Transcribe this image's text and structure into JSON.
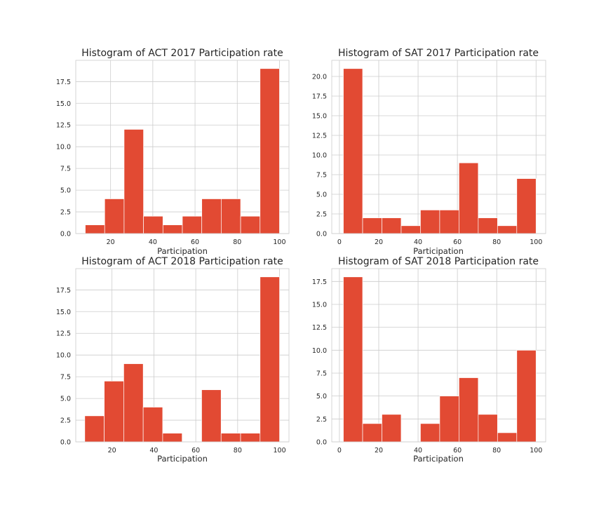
{
  "colors": {
    "bar": "#e24a33",
    "grid": "#cccccc",
    "text": "#262626"
  },
  "chart_data": [
    {
      "type": "bar",
      "title": "Histogram of ACT 2017 Participation rate",
      "xlabel": "Participation",
      "ylabel": "",
      "xlim": [
        3.5,
        104.5
      ],
      "ylim": [
        0,
        19.95
      ],
      "xticks": [
        20,
        40,
        60,
        80,
        100
      ],
      "xtick_labels": [
        "20",
        "40",
        "60",
        "80",
        "100"
      ],
      "yticks": [
        0,
        2.5,
        5,
        7.5,
        10,
        12.5,
        15,
        17.5
      ],
      "ytick_labels": [
        "0.0",
        "2.5",
        "5.0",
        "7.5",
        "10.0",
        "12.5",
        "15.0",
        "17.5"
      ],
      "bin_edges": [
        8,
        17.2,
        26.4,
        35.6,
        44.8,
        54,
        63.2,
        72.4,
        81.6,
        90.8,
        100
      ],
      "values": [
        1,
        4,
        12,
        2,
        1,
        2,
        4,
        4,
        2,
        19
      ],
      "grid": true
    },
    {
      "type": "bar",
      "title": "Histogram of SAT 2017 Participation rate",
      "xlabel": "Participation",
      "ylabel": "",
      "xlim": [
        -3.9,
        104.9
      ],
      "ylim": [
        0,
        22.05
      ],
      "xticks": [
        0,
        20,
        40,
        60,
        80,
        100
      ],
      "xtick_labels": [
        "0",
        "20",
        "40",
        "60",
        "80",
        "100"
      ],
      "yticks": [
        0,
        2.5,
        5,
        7.5,
        10,
        12.5,
        15,
        17.5,
        20
      ],
      "ytick_labels": [
        "0.0",
        "2.5",
        "5.0",
        "7.5",
        "10.0",
        "12.5",
        "15.0",
        "17.5",
        "20.0"
      ],
      "bin_edges": [
        2,
        11.8,
        21.6,
        31.4,
        41.2,
        51,
        60.8,
        70.6,
        80.4,
        90.2,
        100
      ],
      "values": [
        21,
        2,
        2,
        1,
        3,
        3,
        9,
        2,
        1,
        7
      ],
      "grid": true
    },
    {
      "type": "bar",
      "title": "Histogram of ACT 2018 Participation rate",
      "xlabel": "Participation",
      "ylabel": "",
      "xlim": [
        2.7,
        104.5
      ],
      "ylim": [
        0,
        19.95
      ],
      "xticks": [
        20,
        40,
        60,
        80,
        100
      ],
      "xtick_labels": [
        "20",
        "40",
        "60",
        "80",
        "100"
      ],
      "yticks": [
        0,
        2.5,
        5,
        7.5,
        10,
        12.5,
        15,
        17.5
      ],
      "ytick_labels": [
        "0.0",
        "2.5",
        "5.0",
        "7.5",
        "10.0",
        "12.5",
        "15.0",
        "17.5"
      ],
      "bin_edges": [
        7,
        16.3,
        25.6,
        34.9,
        44.2,
        53.5,
        62.8,
        72.1,
        81.4,
        90.7,
        100
      ],
      "values": [
        3,
        7,
        9,
        4,
        1,
        0,
        6,
        1,
        1,
        19
      ],
      "grid": true
    },
    {
      "type": "bar",
      "title": "Histogram of SAT 2018 Participation rate",
      "xlabel": "Participation",
      "ylabel": "",
      "xlim": [
        -3.9,
        104.9
      ],
      "ylim": [
        0,
        18.9
      ],
      "xticks": [
        0,
        20,
        40,
        60,
        80,
        100
      ],
      "xtick_labels": [
        "0",
        "20",
        "40",
        "60",
        "80",
        "100"
      ],
      "yticks": [
        0,
        2.5,
        5,
        7.5,
        10,
        12.5,
        15,
        17.5
      ],
      "ytick_labels": [
        "0.0",
        "2.5",
        "5.0",
        "7.5",
        "10.0",
        "12.5",
        "15.0",
        "17.5"
      ],
      "bin_edges": [
        2,
        11.8,
        21.6,
        31.4,
        41.2,
        51,
        60.8,
        70.6,
        80.4,
        90.2,
        100
      ],
      "values": [
        18,
        2,
        3,
        0,
        2,
        5,
        7,
        3,
        1,
        10
      ],
      "grid": true
    }
  ]
}
